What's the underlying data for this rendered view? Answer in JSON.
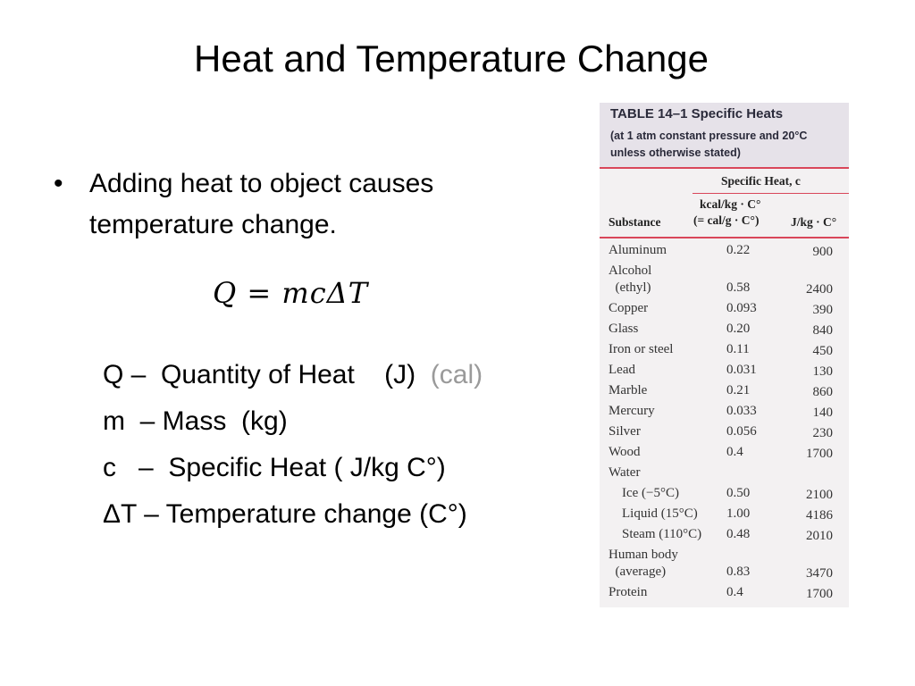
{
  "title": "Heat and Temperature Change",
  "bullet": "Adding heat to object causes temperature change.",
  "equation": "Q = mcΔT",
  "definitions": [
    {
      "text": "Q –  Quantity of Heat    (J)  ",
      "extra": "(cal)"
    },
    {
      "text": "m  – Mass  (kg)",
      "extra": ""
    },
    {
      "text": "c   –  Specific Heat ( J/kg C°)",
      "extra": ""
    },
    {
      "text": "ΔT – Temperature change (C°)",
      "extra": ""
    }
  ],
  "table": {
    "title": "TABLE 14–1  Specific Heats",
    "subtitle_line1": "(at 1 atm constant pressure and 20°C",
    "subtitle_line2": "unless otherwise stated)",
    "group_header": "Specific Heat, c",
    "col_substance": "Substance",
    "col_kcal_line1": "kcal/kg · C°",
    "col_kcal_line2": "(= cal/g · C°)",
    "col_j": "J/kg · C°",
    "rows": [
      {
        "substance": "Aluminum",
        "kcal": "0.22",
        "j": "900"
      },
      {
        "substance": "Alcohol",
        "kcal": "",
        "j": ""
      },
      {
        "substance": "  (ethyl)",
        "kcal": "0.58",
        "j": "2400"
      },
      {
        "substance": "Copper",
        "kcal": "0.093",
        "j": "390"
      },
      {
        "substance": "Glass",
        "kcal": "0.20",
        "j": "840"
      },
      {
        "substance": "Iron or steel",
        "kcal": "0.11",
        "j": "450"
      },
      {
        "substance": "Lead",
        "kcal": "0.031",
        "j": "130"
      },
      {
        "substance": "Marble",
        "kcal": "0.21",
        "j": "860"
      },
      {
        "substance": "Mercury",
        "kcal": "0.033",
        "j": "140"
      },
      {
        "substance": "Silver",
        "kcal": "0.056",
        "j": "230"
      },
      {
        "substance": "Wood",
        "kcal": "0.4",
        "j": "1700"
      },
      {
        "substance": "Water",
        "kcal": "",
        "j": ""
      },
      {
        "substance": "    Ice (−5°C)",
        "kcal": "0.50",
        "j": "2100"
      },
      {
        "substance": "    Liquid (15°C)",
        "kcal": "1.00",
        "j": "4186"
      },
      {
        "substance": "    Steam (110°C)",
        "kcal": "0.48",
        "j": "2010"
      },
      {
        "substance": "Human body",
        "kcal": "",
        "j": ""
      },
      {
        "substance": "  (average)",
        "kcal": "0.83",
        "j": "3470"
      },
      {
        "substance": "Protein",
        "kcal": "0.4",
        "j": "1700"
      }
    ]
  }
}
